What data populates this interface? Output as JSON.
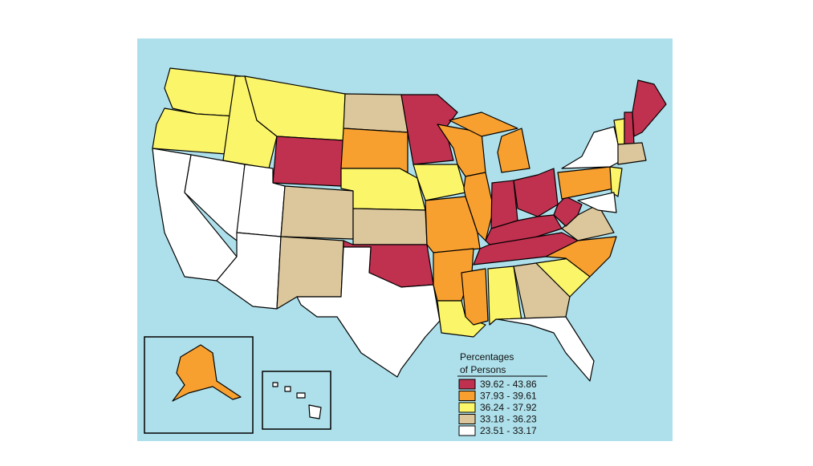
{
  "legend": {
    "title": [
      "Percentages",
      "of Persons"
    ],
    "entries": [
      {
        "label": "39.62 - 43.86",
        "color": "#c0304f"
      },
      {
        "label": "37.93 - 39.61",
        "color": "#f7a030"
      },
      {
        "label": "36.24 - 37.92",
        "color": "#fbf56a"
      },
      {
        "label": "33.18 - 36.23",
        "color": "#dcc79c"
      },
      {
        "label": "23.51 - 33.17",
        "color": "#ffffff"
      }
    ]
  }
}
